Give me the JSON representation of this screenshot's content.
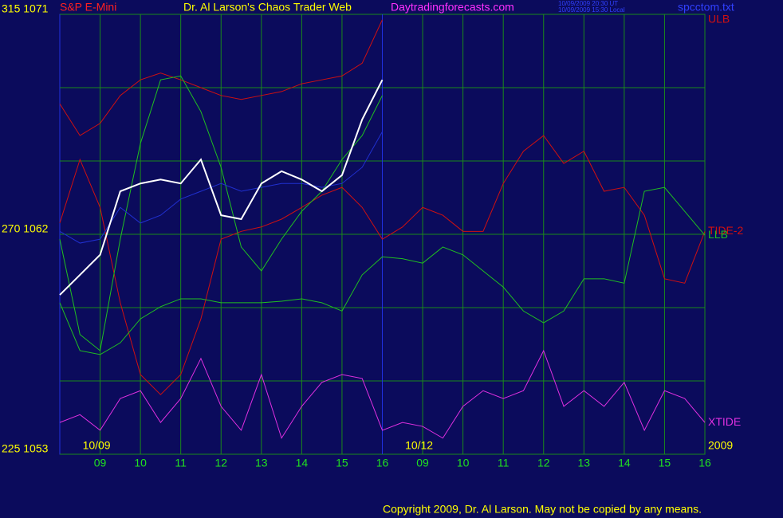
{
  "chart_data": {
    "type": "line",
    "title": "S&P E-Mini",
    "subtitle": "Dr. Al Larson's Chaos Trader Web",
    "site": "Daytradingforecasts.com",
    "timestamps": [
      "10/09/2009 20:30 UT",
      "10/09/2009 15:30 Local"
    ],
    "file": "spcctom.txt",
    "copyright": "Copyright 2009, Dr. Al Larson. May not be copied by any means.",
    "x": [
      0,
      0.5,
      1,
      1.5,
      2,
      2.5,
      3,
      3.5,
      4,
      4.5,
      5,
      5.5,
      6,
      6.5,
      7,
      7.5,
      8,
      8.5,
      9,
      9.5,
      10,
      10.5,
      11,
      11.5,
      12,
      12.5,
      13,
      13.5,
      14,
      14.5,
      15,
      15.5,
      16
    ],
    "xlim": [
      0,
      16
    ],
    "xticks": [
      {
        "value": 1,
        "label": "09"
      },
      {
        "value": 2,
        "label": "10"
      },
      {
        "value": 3,
        "label": "11"
      },
      {
        "value": 4,
        "label": "12"
      },
      {
        "value": 5,
        "label": "13"
      },
      {
        "value": 6,
        "label": "14"
      },
      {
        "value": 7,
        "label": "15"
      },
      {
        "value": 8,
        "label": "16"
      },
      {
        "value": 9,
        "label": "09"
      },
      {
        "value": 10,
        "label": "10"
      },
      {
        "value": 11,
        "label": "11"
      },
      {
        "value": 12,
        "label": "12"
      },
      {
        "value": 13,
        "label": "13"
      },
      {
        "value": 14,
        "label": "14"
      },
      {
        "value": 15,
        "label": "15"
      },
      {
        "value": 16,
        "label": "16"
      }
    ],
    "date_labels": [
      {
        "value": 1,
        "label": "10/09"
      },
      {
        "value": 9,
        "label": "10/12"
      },
      {
        "value": 16,
        "label": "2009"
      }
    ],
    "divider_x": 8,
    "ylim": [
      225,
      315
    ],
    "yticks": [
      {
        "value": 225,
        "label": "225 1053"
      },
      {
        "value": 240,
        "label": null
      },
      {
        "value": 255,
        "label": null
      },
      {
        "value": 270,
        "label": "270 1062"
      },
      {
        "value": 285,
        "label": null
      },
      {
        "value": 300,
        "label": null
      },
      {
        "value": 315,
        "label": "315 1071"
      }
    ],
    "grid": true,
    "series": [
      {
        "name": "ULB",
        "color": "#d01010",
        "values": [
          296.7,
          290.2,
          292.7,
          298.4,
          301.6,
          303,
          301.6,
          300,
          298.4,
          297.6,
          298.4,
          299.2,
          300.8,
          301.6,
          302.4,
          305,
          313.9,
          null,
          null,
          null,
          null,
          null,
          null,
          null,
          null,
          null,
          null,
          null,
          null,
          null,
          null,
          null,
          null
        ]
      },
      {
        "name": "TIDE-2",
        "color": "#d01010",
        "values": [
          272.3,
          285.3,
          275.5,
          256,
          241.3,
          237.2,
          241.3,
          252.7,
          269,
          270.6,
          271.5,
          273.1,
          275.5,
          278,
          279.6,
          275.5,
          269,
          271.5,
          275.5,
          273.9,
          270.6,
          270.6,
          280.4,
          287,
          290.2,
          284.5,
          287,
          278.8,
          279.6,
          273.9,
          260.9,
          260,
          270.6
        ]
      },
      {
        "color": "#20c020",
        "values": [
          269,
          249.5,
          246.2,
          269,
          288.6,
          301.6,
          302.4,
          295.1,
          283.7,
          267.4,
          262.5,
          269,
          274.7,
          278.8,
          285.3,
          290.2,
          298.4,
          null,
          null,
          null,
          null,
          null,
          null,
          null,
          null,
          null,
          null,
          null,
          null,
          null,
          null,
          null,
          null
        ]
      },
      {
        "name": "LLB",
        "color": "#20c020",
        "values": [
          256,
          246.2,
          245.4,
          247.8,
          252.7,
          255.2,
          256.8,
          256.8,
          256,
          256,
          256,
          256.3,
          256.8,
          256,
          254.3,
          261.7,
          265.4,
          265,
          264.1,
          267.4,
          265.8,
          262.5,
          259.2,
          254.3,
          251.9,
          254.3,
          260.9,
          260.9,
          260,
          278.8,
          279.6,
          274.7,
          269.8
        ]
      },
      {
        "color": "#2030d0",
        "values": [
          270.6,
          268.2,
          269,
          275.5,
          272.3,
          273.9,
          277.2,
          278.8,
          280.4,
          278.8,
          279.6,
          280.4,
          280.4,
          279.6,
          280.4,
          283.7,
          291,
          null,
          null,
          null,
          null,
          null,
          null,
          null,
          null,
          null,
          null,
          null,
          null,
          null,
          null,
          null,
          null
        ]
      },
      {
        "color": "#ffffff",
        "values": [
          257.6,
          261.7,
          265.8,
          278.8,
          280.4,
          281.2,
          280.4,
          285.3,
          273.9,
          273.1,
          280.4,
          282.9,
          281.2,
          278.8,
          282.1,
          293.5,
          301.6,
          null,
          null,
          null,
          null,
          null,
          null,
          null,
          null,
          null,
          null,
          null,
          null,
          null,
          null,
          null,
          null
        ]
      },
      {
        "name": "XTIDE",
        "color": "#e030e0",
        "values": [
          231.5,
          233.1,
          229.9,
          236.4,
          238,
          231.5,
          236.4,
          244.6,
          234.8,
          229.9,
          241.3,
          228.3,
          234.8,
          239.7,
          241.3,
          240.5,
          229.9,
          231.5,
          230.7,
          228.3,
          234.8,
          238,
          236.4,
          238,
          246.2,
          234.8,
          238,
          234.8,
          239.7,
          229.9,
          238,
          236.4,
          231.5
        ]
      }
    ]
  }
}
